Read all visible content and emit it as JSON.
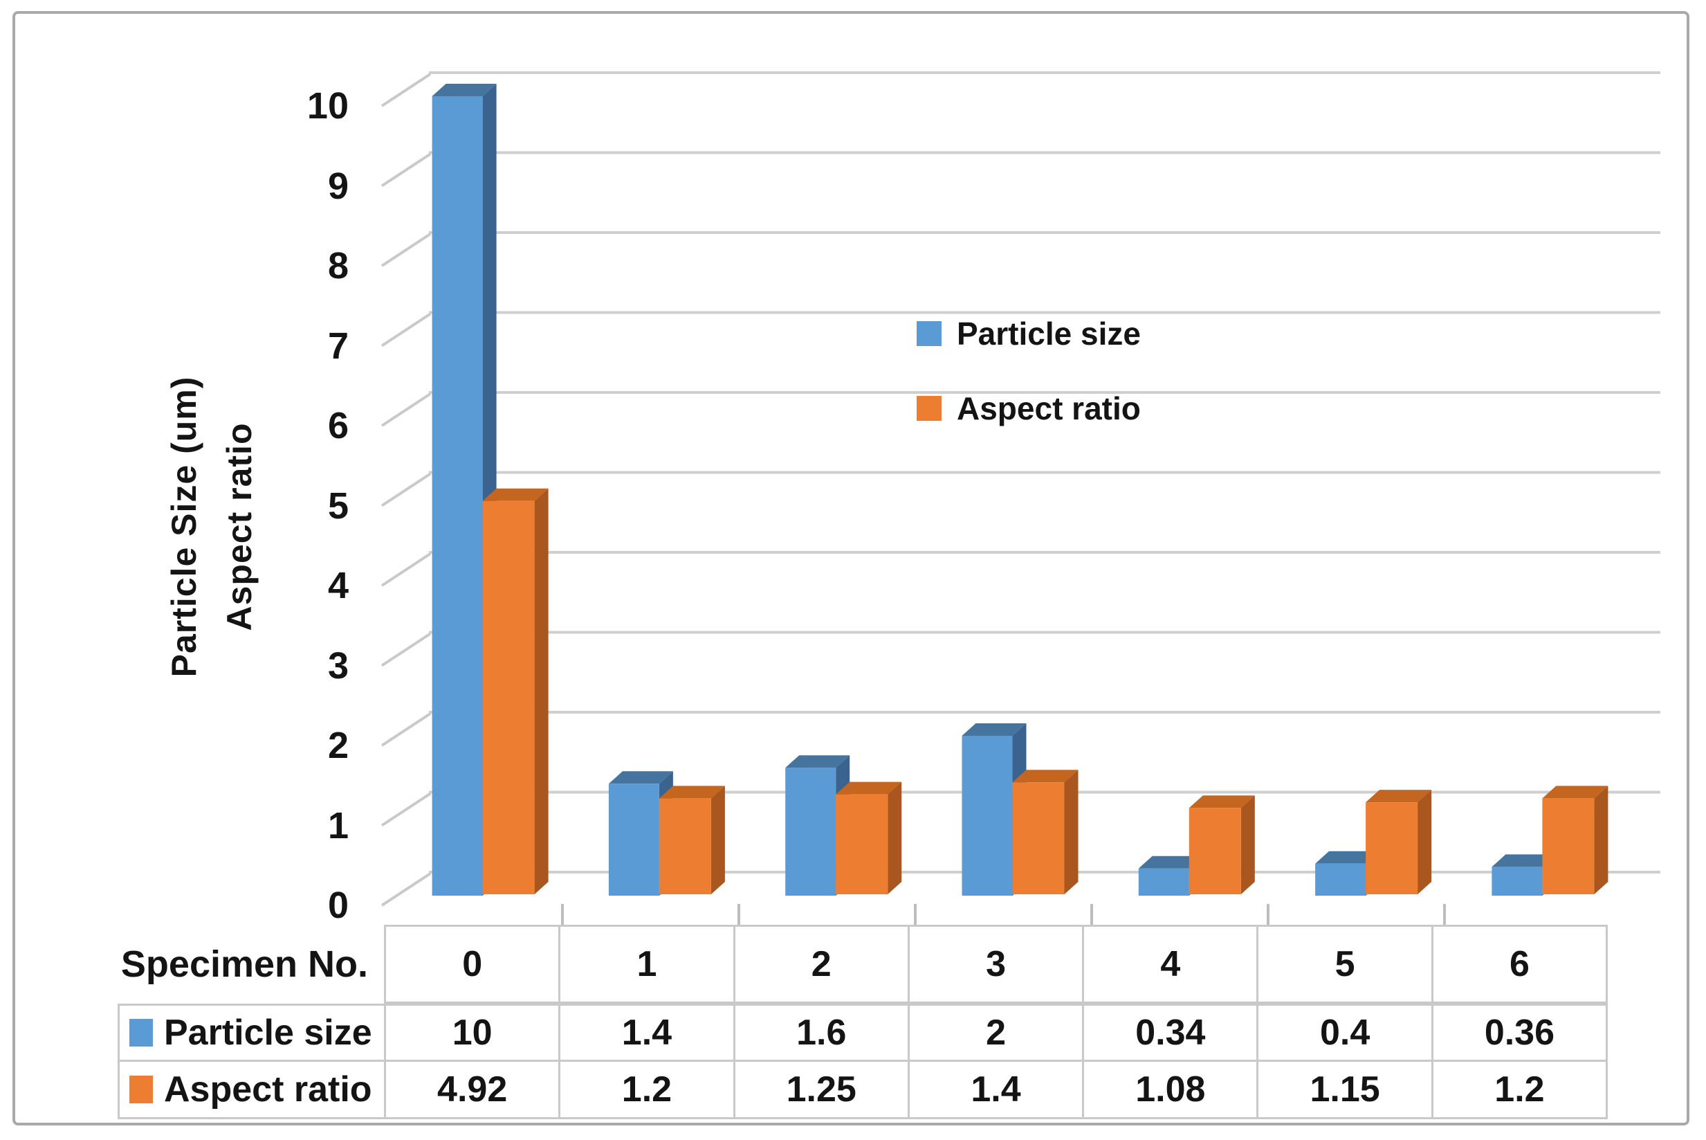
{
  "chart_data": {
    "type": "bar",
    "variant": "3d-clustered-column",
    "categories": [
      "0",
      "1",
      "2",
      "3",
      "4",
      "5",
      "6"
    ],
    "series": [
      {
        "name": "Particle size",
        "color": "#5B9BD5",
        "values": [
          10,
          1.4,
          1.6,
          2,
          0.34,
          0.4,
          0.36
        ]
      },
      {
        "name": "Aspect ratio",
        "color": "#ED7D31",
        "values": [
          4.92,
          1.2,
          1.25,
          1.4,
          1.08,
          1.15,
          1.2
        ]
      }
    ],
    "title": "",
    "xlabel": "Specimen No.",
    "ylabel_line1": "Particle Size (um)",
    "ylabel_line2": "Aspect ratio",
    "ylim": [
      0,
      10
    ],
    "ytick_step": 1,
    "grid": true,
    "legend_position": "inside-upper-right"
  },
  "legend": {
    "items": [
      {
        "label": "Particle size",
        "color": "#5B9BD5"
      },
      {
        "label": "Aspect ratio",
        "color": "#ED7D31"
      }
    ]
  },
  "table": {
    "corner_label": "Specimen No.",
    "column_headers": [
      "0",
      "1",
      "2",
      "3",
      "4",
      "5",
      "6"
    ],
    "rows": [
      {
        "label": "Particle size",
        "swatch_color": "#5B9BD5",
        "values": [
          "10",
          "1.4",
          "1.6",
          "2",
          "0.34",
          "0.4",
          "0.36"
        ]
      },
      {
        "label": "Aspect ratio",
        "swatch_color": "#ED7D31",
        "values": [
          "4.92",
          "1.2",
          "1.25",
          "1.4",
          "1.08",
          "1.15",
          "1.2"
        ]
      }
    ]
  },
  "colors": {
    "blue_front": "#5B9BD5",
    "blue_top": "#45749E",
    "blue_side": "#3A648F",
    "orange_front": "#ED7D31",
    "orange_top": "#C4661F",
    "orange_side": "#A9571E",
    "gridline": "#cfcfcf",
    "axis_stub": "#c9c9c9",
    "category_tick": "#bdbdbd",
    "table_border": "#c9c9c9",
    "figure_border": "#a9a9a9",
    "text": "#141414"
  }
}
